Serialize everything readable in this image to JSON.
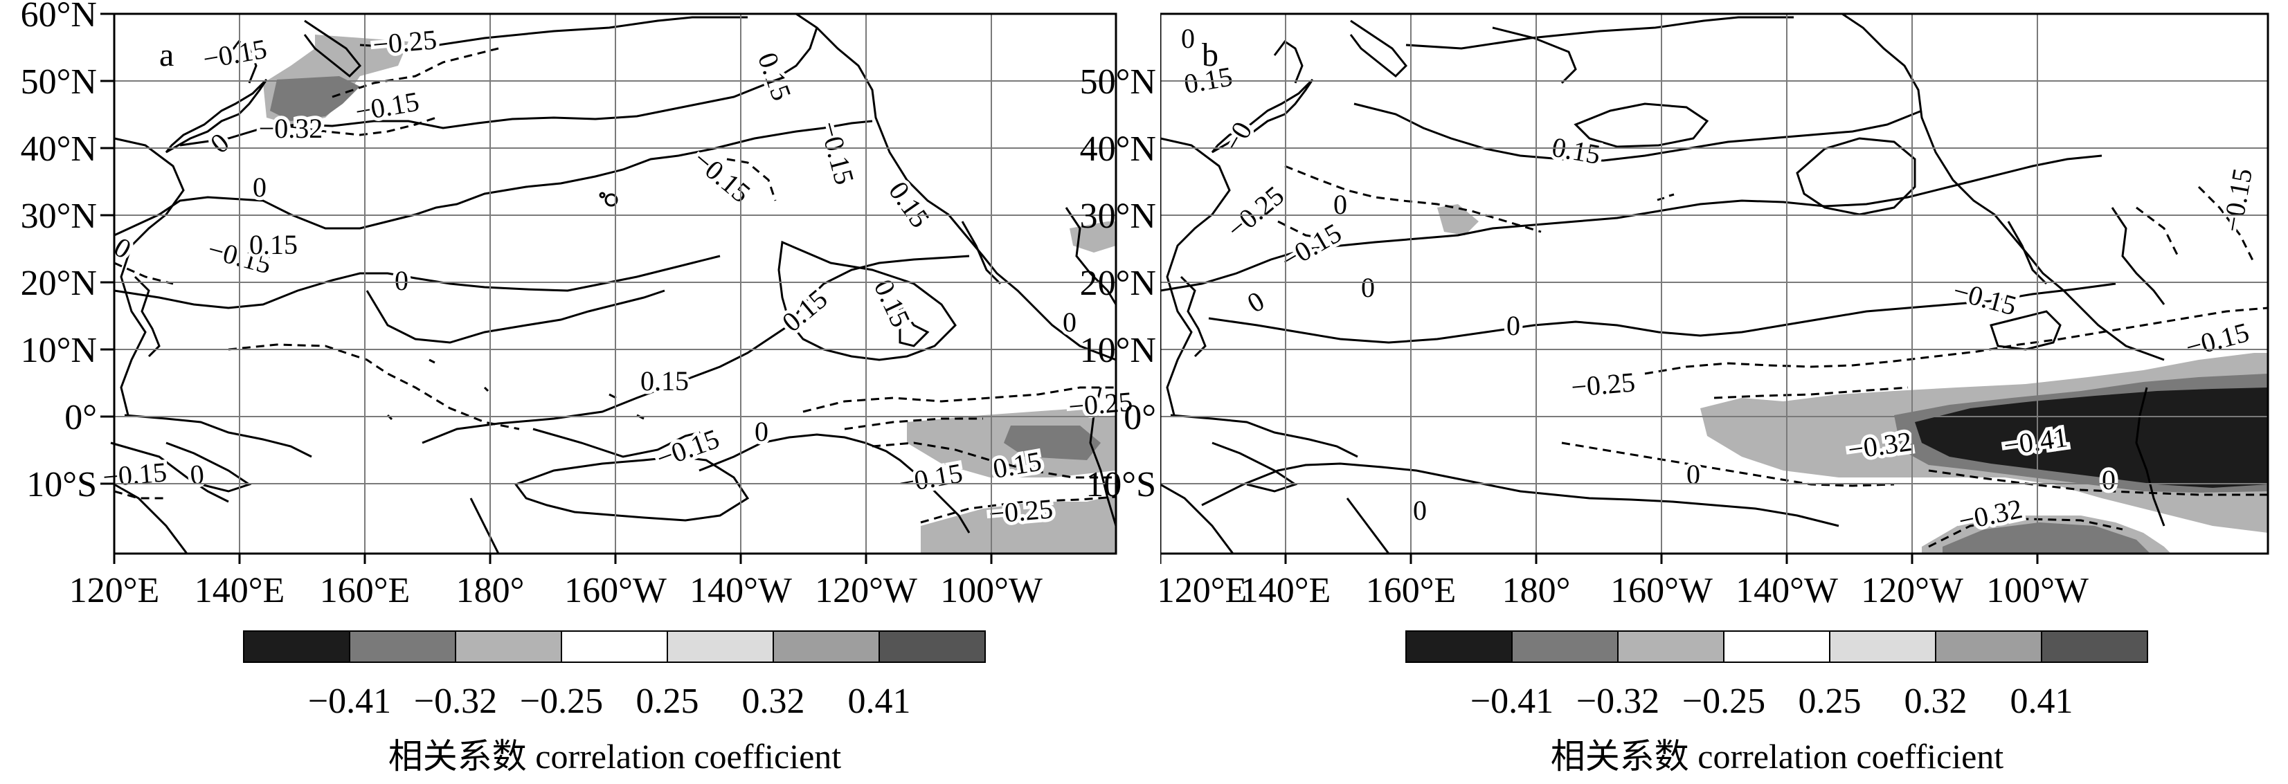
{
  "shading_colors": {
    "neg041": "#1c1c1c",
    "neg032": "#7a7a7a",
    "neg025": "#b3b3b3",
    "neutral": "#ffffff",
    "pos025": "#dcdcdc",
    "pos032": "#9e9e9e",
    "pos041": "#555555"
  },
  "legend": {
    "ticks": [
      "−0.41",
      "−0.32",
      "−0.25",
      "0.25",
      "0.32",
      "0.41"
    ],
    "label": "相关系数  correlation coefficient"
  },
  "axes": {
    "lat_labels": [
      "60°N",
      "50°N",
      "40°N",
      "30°N",
      "20°N",
      "10°N",
      "0°",
      "10°S"
    ],
    "lon_labels": [
      "120°E",
      "140°E",
      "160°E",
      "180°",
      "160°W",
      "140°W",
      "120°W",
      "100°W"
    ]
  },
  "chart_data": [
    {
      "type": "heatmap",
      "panel_label": "a",
      "x_range": [
        "120°E",
        "70°W"
      ],
      "y_range": [
        "20°S",
        "60°N"
      ],
      "contour_labels": [
        "−0.15",
        "−0.25",
        "−0.15",
        "−0.32",
        "0",
        "0",
        "0",
        "−0.15",
        "0.15",
        "0",
        "−0.15",
        "0.15",
        "−0.15",
        "0.15",
        "0.15",
        "0.15",
        "0.15",
        "−0.15",
        "0",
        "−0.15",
        "0.15",
        "−0.25",
        "−0.25",
        "−0.15",
        "0",
        "0"
      ]
    },
    {
      "type": "heatmap",
      "panel_label": "b",
      "x_range": [
        "120°E",
        "70°W"
      ],
      "y_range": [
        "20°S",
        "60°N"
      ],
      "contour_labels": [
        "0",
        "0.15",
        "−0",
        "−0.25",
        "−0.15",
        "0",
        "0",
        "0.15",
        "0",
        "−0.15",
        "0",
        "−0.25",
        "−0.32",
        "−0.41",
        "−0.32",
        "0",
        "0",
        "−0.15",
        "−0.15",
        "0"
      ]
    }
  ]
}
